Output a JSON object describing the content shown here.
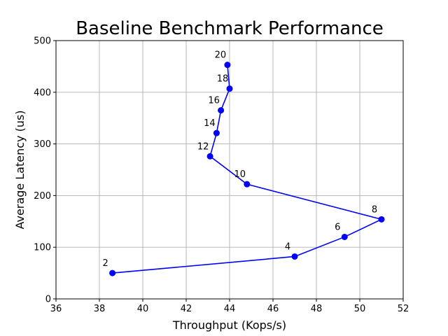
{
  "chart_data": {
    "type": "line",
    "title": "Baseline Benchmark Performance",
    "xlabel": "Throughput (Kops/s)",
    "ylabel": "Average Latency (us)",
    "xlim": [
      36,
      52
    ],
    "ylim": [
      0,
      500
    ],
    "xticks": [
      "36",
      "38",
      "40",
      "42",
      "44",
      "46",
      "48",
      "50",
      "52"
    ],
    "yticks": [
      "0",
      "100",
      "200",
      "300",
      "400",
      "500"
    ],
    "grid": true,
    "series": [
      {
        "color": "#0000ff",
        "points": [
          {
            "label": "2",
            "x": 38.6,
            "y": 50
          },
          {
            "label": "4",
            "x": 47.0,
            "y": 82
          },
          {
            "label": "6",
            "x": 49.3,
            "y": 120
          },
          {
            "label": "8",
            "x": 51.0,
            "y": 154
          },
          {
            "label": "10",
            "x": 44.8,
            "y": 222
          },
          {
            "label": "12",
            "x": 43.1,
            "y": 276
          },
          {
            "label": "14",
            "x": 43.4,
            "y": 321
          },
          {
            "label": "16",
            "x": 43.6,
            "y": 365
          },
          {
            "label": "18",
            "x": 44.0,
            "y": 407
          },
          {
            "label": "20",
            "x": 43.9,
            "y": 453
          }
        ]
      }
    ]
  }
}
